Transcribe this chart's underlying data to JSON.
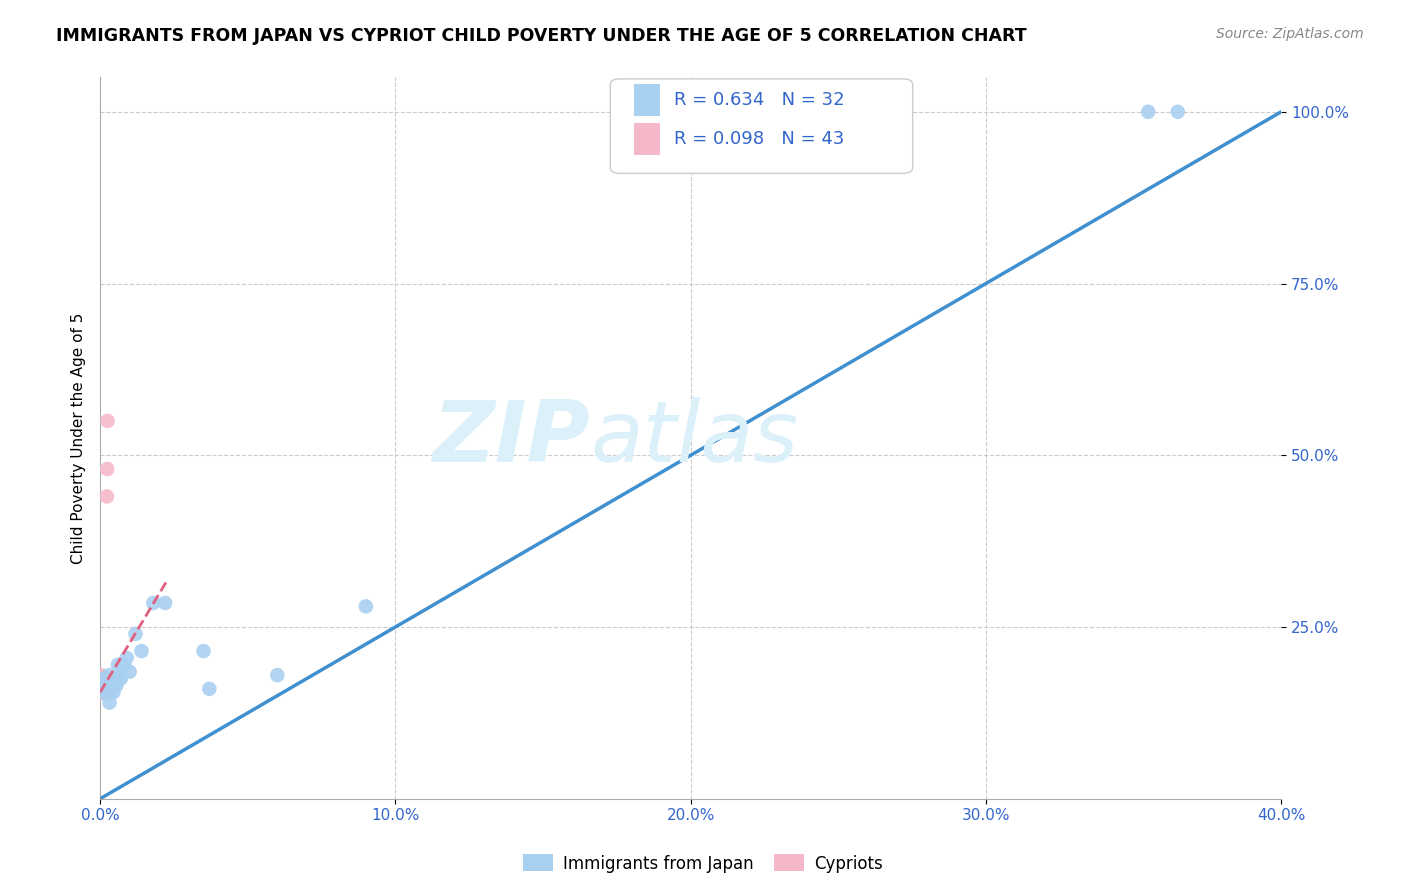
{
  "title": "IMMIGRANTS FROM JAPAN VS CYPRIOT CHILD POVERTY UNDER THE AGE OF 5 CORRELATION CHART",
  "source": "Source: ZipAtlas.com",
  "ylabel_label": "Child Poverty Under the Age of 5",
  "legend_entry1": "R = 0.634   N = 32",
  "legend_entry2": "R = 0.098   N = 43",
  "legend_label1": "Immigrants from Japan",
  "legend_label2": "Cypriots",
  "blue_color": "#A8D0F0",
  "pink_color": "#F5B8C8",
  "blue_line_color": "#4090D0",
  "pink_line_color": "#E06080",
  "background_color": "#FFFFFF",
  "watermark_color": "#DCF0FA",
  "japan_x": [
    0.0008,
    0.0012,
    0.0015,
    0.0018,
    0.002,
    0.0022,
    0.0025,
    0.003,
    0.0032,
    0.0035,
    0.004,
    0.0042,
    0.0045,
    0.005,
    0.0055,
    0.006,
    0.0065,
    0.007,
    0.0075,
    0.008,
    0.009,
    0.01,
    0.012,
    0.014,
    0.018,
    0.022,
    0.035,
    0.037,
    0.06,
    0.09,
    0.355,
    0.365
  ],
  "japan_y": [
    0.155,
    0.17,
    0.175,
    0.16,
    0.165,
    0.16,
    0.175,
    0.18,
    0.14,
    0.155,
    0.175,
    0.165,
    0.155,
    0.175,
    0.165,
    0.195,
    0.175,
    0.175,
    0.195,
    0.195,
    0.205,
    0.185,
    0.24,
    0.215,
    0.285,
    0.285,
    0.215,
    0.16,
    0.18,
    0.28,
    1.0,
    1.0
  ],
  "cyprus_x": [
    0.0001,
    0.0001,
    0.0002,
    0.0002,
    0.0003,
    0.0003,
    0.0004,
    0.0004,
    0.0005,
    0.0005,
    0.0006,
    0.0006,
    0.0007,
    0.0007,
    0.0008,
    0.0008,
    0.0009,
    0.0009,
    0.001,
    0.001,
    0.0011,
    0.0011,
    0.0012,
    0.0012,
    0.0013,
    0.0013,
    0.0014,
    0.0015,
    0.0015,
    0.0016,
    0.0016,
    0.0017,
    0.0018,
    0.0018,
    0.0019,
    0.002,
    0.002,
    0.0021,
    0.0022,
    0.0022,
    0.0023,
    0.0024,
    0.0025
  ],
  "cyprus_y": [
    0.165,
    0.18,
    0.165,
    0.175,
    0.155,
    0.165,
    0.175,
    0.16,
    0.16,
    0.17,
    0.175,
    0.165,
    0.155,
    0.165,
    0.155,
    0.17,
    0.16,
    0.175,
    0.155,
    0.17,
    0.175,
    0.16,
    0.165,
    0.175,
    0.165,
    0.175,
    0.16,
    0.155,
    0.17,
    0.165,
    0.175,
    0.175,
    0.175,
    0.16,
    0.165,
    0.155,
    0.165,
    0.16,
    0.155,
    0.165,
    0.44,
    0.48,
    0.55
  ],
  "xlim": [
    0.0,
    0.4
  ],
  "ylim": [
    0.0,
    1.05
  ],
  "xticks": [
    0.0,
    0.1,
    0.2,
    0.3,
    0.4
  ],
  "yticks": [
    0.25,
    0.5,
    0.75,
    1.0
  ],
  "xtick_labels": [
    "0.0%",
    "10.0%",
    "20.0%",
    "30.0%",
    "40.0%"
  ],
  "ytick_labels": [
    "25.0%",
    "50.0%",
    "75.0%",
    "100.0%"
  ],
  "japan_line_x0": 0.0,
  "japan_line_x1": 0.4,
  "japan_line_y0": 0.0,
  "japan_line_y1": 1.0,
  "cyprus_line_x0": 0.0,
  "cyprus_line_x1": 0.023,
  "cyprus_line_y0": 0.155,
  "cyprus_line_y1": 0.32,
  "ref_line_x0": 0.0,
  "ref_line_x1": 0.4,
  "ref_line_y0": 0.0,
  "ref_line_y1": 1.0
}
